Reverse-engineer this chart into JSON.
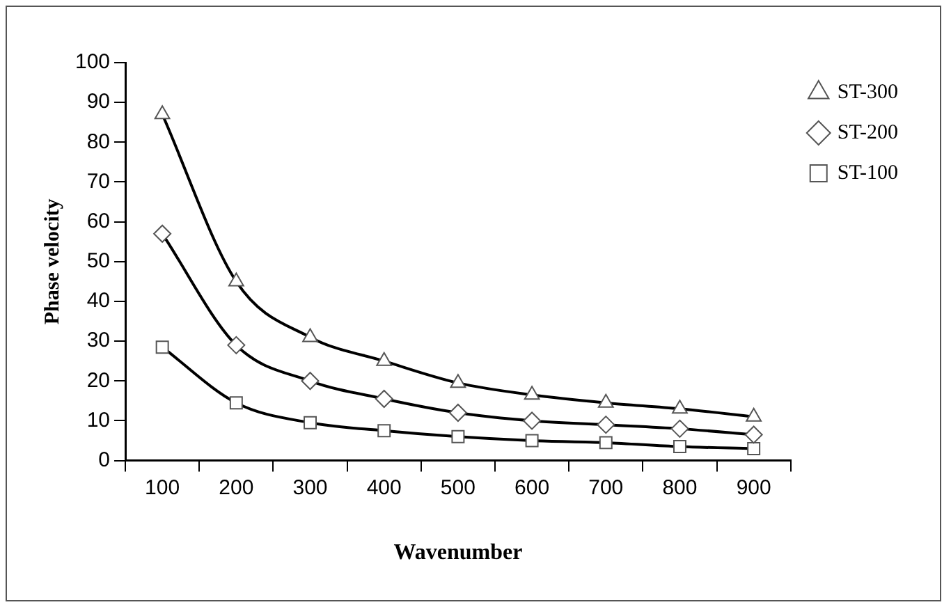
{
  "chart_data": {
    "type": "line",
    "xlabel": "Wavenumber",
    "ylabel": "Phase velocity",
    "categories": [
      "100",
      "200",
      "300",
      "400",
      "500",
      "600",
      "700",
      "800",
      "900"
    ],
    "series": [
      {
        "name": "ST-300",
        "color": "#000000",
        "marker": "triangle",
        "values": [
          87,
          45,
          31,
          25,
          19.5,
          16.5,
          14.5,
          13,
          11
        ]
      },
      {
        "name": "ST-200",
        "color": "#000000",
        "marker": "diamond",
        "values": [
          57,
          29,
          20,
          15.5,
          12,
          10,
          9,
          8,
          6.5
        ]
      },
      {
        "name": "ST-100",
        "color": "#000000",
        "marker": "square",
        "values": [
          28.5,
          14.5,
          9.5,
          7.5,
          6,
          5,
          4.5,
          3.5,
          3
        ]
      }
    ],
    "ylim": [
      0,
      100
    ],
    "yticks": [
      0,
      10,
      20,
      30,
      40,
      50,
      60,
      70,
      80,
      90,
      100
    ],
    "grid": false,
    "legend": "top right"
  }
}
